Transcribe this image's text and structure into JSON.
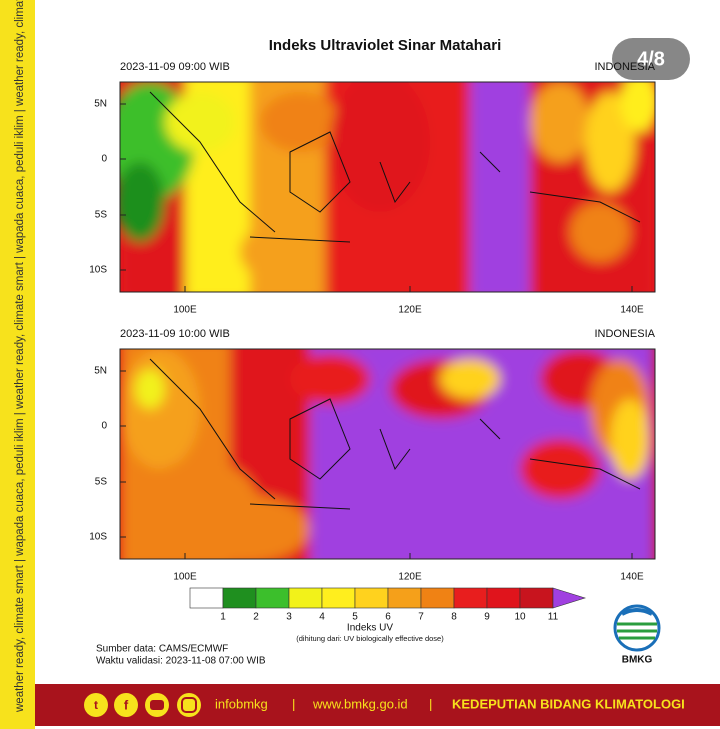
{
  "badge": "4/8",
  "title": "Indeks Ultraviolet Sinar Matahari",
  "maps": [
    {
      "time": "2023-11-09  09:00 WIB",
      "region": "INDONESIA"
    },
    {
      "time": "2023-11-09  10:00 WIB",
      "region": "INDONESIA"
    }
  ],
  "lat_labels": [
    "5N",
    "0",
    "5S",
    "10S"
  ],
  "lon_labels": [
    "100E",
    "120E",
    "140E"
  ],
  "colorbar": {
    "labels": [
      "1",
      "2",
      "3",
      "4",
      "5",
      "6",
      "7",
      "8",
      "9",
      "10",
      "11"
    ],
    "colors": [
      "#ffffff",
      "#1f8f1f",
      "#3cbf2c",
      "#f2f21a",
      "#ffee1e",
      "#ffd21e",
      "#f5a01a",
      "#f08214",
      "#e81e1e",
      "#e0141c",
      "#c8141e",
      "#a040e0"
    ],
    "title": "Indeks UV",
    "note": "(dihitung dari: UV biologically effective dose)"
  },
  "source": "Sumber data: CAMS/ECMWF",
  "validity": "Waktu validasi: 2023-11-08 07:00 WIB",
  "logo": "BMKG",
  "side_text": "weather ready, climate smart  |  wapada cuaca, peduli iklim  |  weather ready, climate smart  |  wapada cuaca, peduli iklim  |  weather ready, climate smart  |  wapada cuaca, peduli iklim",
  "footer": {
    "handle": "infobmkg",
    "separator": "|",
    "website": "www.bmkg.go.id",
    "department": "KEDEPUTIAN BIDANG KLIMATOLOGI"
  }
}
